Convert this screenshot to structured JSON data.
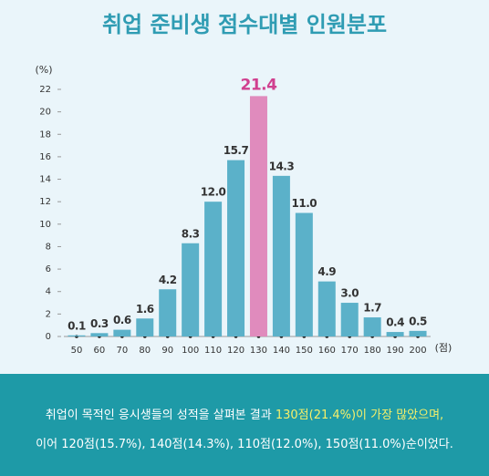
{
  "chart_data": {
    "type": "bar",
    "title": "취업 준비생 점수대별 인원분포",
    "y_label": "(%)",
    "x_label": "(점)",
    "categories": [
      "50",
      "60",
      "70",
      "80",
      "90",
      "100",
      "110",
      "120",
      "130",
      "140",
      "150",
      "160",
      "170",
      "180",
      "190",
      "200"
    ],
    "values": [
      0.1,
      0.3,
      0.6,
      1.6,
      4.2,
      8.3,
      12.0,
      15.7,
      21.4,
      14.3,
      11.0,
      4.9,
      3.0,
      1.7,
      0.4,
      0.5
    ],
    "value_labels": [
      "0.1",
      "0.3",
      "0.6",
      "1.6",
      "4.2",
      "8.3",
      "12.0",
      "15.7",
      "21.4",
      "14.3",
      "11.0",
      "4.9",
      "3.0",
      "1.7",
      "0.4",
      "0.5"
    ],
    "colors": [
      "#5bb1c9",
      "#5bb1c9",
      "#5bb1c9",
      "#5bb1c9",
      "#5bb1c9",
      "#5bb1c9",
      "#5bb1c9",
      "#5bb1c9",
      "#e08bbd",
      "#5bb1c9",
      "#5bb1c9",
      "#5bb1c9",
      "#5bb1c9",
      "#5bb1c9",
      "#5bb1c9",
      "#5bb1c9"
    ],
    "label_colors": [
      "#333333",
      "#333333",
      "#333333",
      "#333333",
      "#333333",
      "#333333",
      "#333333",
      "#333333",
      "#d0408f",
      "#333333",
      "#333333",
      "#333333",
      "#333333",
      "#333333",
      "#333333",
      "#333333"
    ],
    "ylim": [
      0,
      22
    ],
    "yticks": [
      0,
      2,
      4,
      6,
      8,
      10,
      12,
      14,
      16,
      18,
      20,
      22
    ],
    "grid": false,
    "note": [
      [
        {
          "text": "취업이 목적인 응시생들의 성적을 살펴본 결과 ",
          "highlight": false
        },
        {
          "text": "130점(21.4%)이 가장 많았으며,",
          "highlight": true
        }
      ],
      [
        {
          "text": "이어 120점(15.7%), 140점(14.3%), 110점(12.0%), 150점(11.0%)순이었다.",
          "highlight": false
        }
      ]
    ]
  }
}
